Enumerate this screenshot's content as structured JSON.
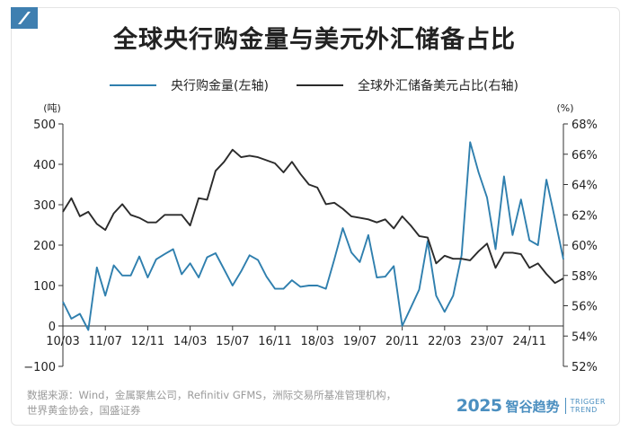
{
  "title": "全球央行购金量与美元外汇储备占比",
  "legend": [
    {
      "label": "央行购金量(左轴)",
      "color": "#2f7fae"
    },
    {
      "label": "全球外汇储备美元占比(右轴)",
      "color": "#2b2b2b"
    }
  ],
  "source_lines": [
    "数据来源：Wind，金属聚焦公司，Refinitiv GFMS，洲际交易所基准管理机构，",
    "世界黄金协会，国盛证券"
  ],
  "brand": {
    "year": "2025",
    "name_cn": "智谷趋势",
    "name_en_1": "TRIGGER",
    "name_en_2": "TREND"
  },
  "colors": {
    "gold_series": "#2f7fae",
    "usd_series": "#2b2b2b",
    "brand": "#4b8fc0",
    "source_text": "#9a9a9a"
  },
  "chart_data": {
    "type": "line",
    "left_axis": {
      "unit": "(吨)",
      "range": [
        -100,
        500
      ],
      "ticks": [
        "500",
        "400",
        "300",
        "200",
        "100",
        "0",
        "−100"
      ],
      "tick_values": [
        500,
        400,
        300,
        200,
        100,
        0,
        -100
      ]
    },
    "right_axis": {
      "unit": "(%)",
      "range": [
        52,
        68
      ],
      "ticks": [
        "68%",
        "66%",
        "64%",
        "62%",
        "60%",
        "58%",
        "56%",
        "54%",
        "52%"
      ],
      "tick_values": [
        68,
        66,
        64,
        62,
        60,
        58,
        56,
        54,
        52
      ]
    },
    "x_axis": {
      "range": [
        0,
        59
      ],
      "tick_labels": [
        "10/03",
        "11/07",
        "12/11",
        "14/03",
        "15/07",
        "16/11",
        "18/03",
        "19/07",
        "20/11",
        "22/03",
        "23/07",
        "24/11"
      ],
      "tick_positions": [
        0,
        5,
        10,
        15,
        20,
        25,
        30,
        35,
        40,
        45,
        50,
        55
      ]
    },
    "grid": false,
    "legend_position": "top",
    "series": [
      {
        "name": "央行购金量(左轴)",
        "axis": "left",
        "values": [
          60,
          18,
          30,
          -10,
          145,
          75,
          150,
          125,
          125,
          172,
          120,
          165,
          178,
          190,
          128,
          155,
          120,
          170,
          180,
          140,
          100,
          135,
          175,
          163,
          122,
          92,
          92,
          113,
          97,
          100,
          100,
          92,
          165,
          242,
          182,
          158,
          225,
          120,
          122,
          148,
          0,
          45,
          90,
          210,
          75,
          35,
          75,
          175,
          455,
          380,
          318,
          190,
          370,
          225,
          313,
          212,
          200,
          362,
          265,
          165
        ]
      },
      {
        "name": "全球外汇储备美元占比(右轴)",
        "axis": "right",
        "values": [
          62.2,
          63.1,
          61.9,
          62.2,
          61.4,
          61.0,
          62.1,
          62.7,
          62.0,
          61.8,
          61.5,
          61.5,
          62.0,
          62.0,
          62.0,
          61.3,
          63.1,
          63.0,
          64.9,
          65.5,
          66.3,
          65.8,
          65.9,
          65.8,
          65.6,
          65.4,
          64.8,
          65.5,
          64.7,
          64.0,
          63.8,
          62.7,
          62.8,
          62.4,
          61.9,
          61.8,
          61.7,
          61.5,
          61.7,
          61.1,
          61.9,
          61.3,
          60.6,
          60.5,
          58.8,
          59.3,
          59.1,
          59.1,
          59.0,
          59.6,
          60.1,
          58.5,
          59.5,
          59.5,
          59.4,
          58.5,
          58.8,
          58.1,
          57.5,
          57.8
        ]
      }
    ]
  }
}
